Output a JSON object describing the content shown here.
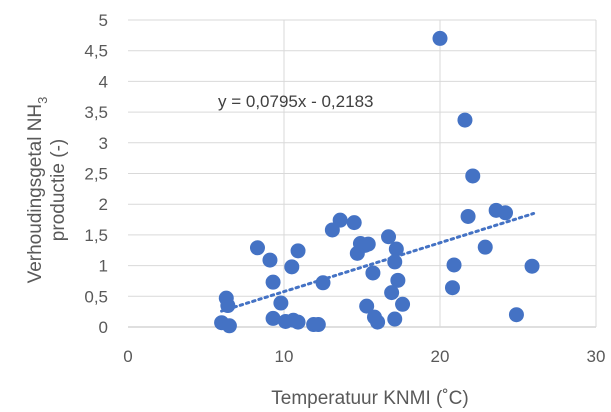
{
  "chart_data": {
    "type": "scatter",
    "title": "",
    "xlabel": "Temperatuur KNMI (˚C)",
    "ylabel_line1_prefix": "Verhoudingsgetal NH",
    "ylabel_line1_sub": "3",
    "ylabel_line2": "productie (-)",
    "xlim": [
      0,
      30
    ],
    "ylim": [
      0,
      5
    ],
    "x_ticks": [
      0,
      10,
      20,
      30
    ],
    "y_tick_labels": [
      "0",
      "0,5",
      "1",
      "1,5",
      "2",
      "2,5",
      "3",
      "3,5",
      "4",
      "4,5",
      "5"
    ],
    "grid": true,
    "legend": "none",
    "marker_color": "#4472C4",
    "trendline": {
      "type": "linear",
      "slope": 0.0795,
      "intercept": -0.2183,
      "x_range": [
        6,
        26
      ],
      "style": "dotted"
    },
    "trendline_equation": "y = 0,0795x - 0,2183",
    "points": [
      {
        "x": 6.0,
        "y": 0.07
      },
      {
        "x": 6.3,
        "y": 0.47
      },
      {
        "x": 6.4,
        "y": 0.35
      },
      {
        "x": 6.5,
        "y": 0.02
      },
      {
        "x": 8.3,
        "y": 1.29
      },
      {
        "x": 9.1,
        "y": 1.09
      },
      {
        "x": 9.3,
        "y": 0.73
      },
      {
        "x": 9.3,
        "y": 0.14
      },
      {
        "x": 9.8,
        "y": 0.39
      },
      {
        "x": 10.1,
        "y": 0.09
      },
      {
        "x": 10.5,
        "y": 0.98
      },
      {
        "x": 10.6,
        "y": 0.11
      },
      {
        "x": 10.9,
        "y": 1.24
      },
      {
        "x": 10.9,
        "y": 0.08
      },
      {
        "x": 11.9,
        "y": 0.04
      },
      {
        "x": 12.2,
        "y": 0.04
      },
      {
        "x": 12.5,
        "y": 0.72
      },
      {
        "x": 13.1,
        "y": 1.58
      },
      {
        "x": 13.6,
        "y": 1.74
      },
      {
        "x": 14.5,
        "y": 1.7
      },
      {
        "x": 14.7,
        "y": 1.2
      },
      {
        "x": 14.9,
        "y": 1.36
      },
      {
        "x": 15.2,
        "y": 1.33
      },
      {
        "x": 15.3,
        "y": 0.34
      },
      {
        "x": 15.4,
        "y": 1.35
      },
      {
        "x": 15.7,
        "y": 0.88
      },
      {
        "x": 15.8,
        "y": 0.16
      },
      {
        "x": 16.0,
        "y": 0.08
      },
      {
        "x": 16.7,
        "y": 1.47
      },
      {
        "x": 16.9,
        "y": 0.56
      },
      {
        "x": 17.1,
        "y": 1.06
      },
      {
        "x": 17.1,
        "y": 0.13
      },
      {
        "x": 17.2,
        "y": 1.27
      },
      {
        "x": 17.3,
        "y": 0.76
      },
      {
        "x": 17.6,
        "y": 0.37
      },
      {
        "x": 20.0,
        "y": 4.7
      },
      {
        "x": 20.8,
        "y": 0.64
      },
      {
        "x": 20.9,
        "y": 1.01
      },
      {
        "x": 21.6,
        "y": 3.37
      },
      {
        "x": 21.8,
        "y": 1.8
      },
      {
        "x": 22.1,
        "y": 2.46
      },
      {
        "x": 22.9,
        "y": 1.3
      },
      {
        "x": 23.6,
        "y": 1.9
      },
      {
        "x": 24.2,
        "y": 1.86
      },
      {
        "x": 24.9,
        "y": 0.2
      },
      {
        "x": 25.9,
        "y": 0.99
      }
    ]
  }
}
